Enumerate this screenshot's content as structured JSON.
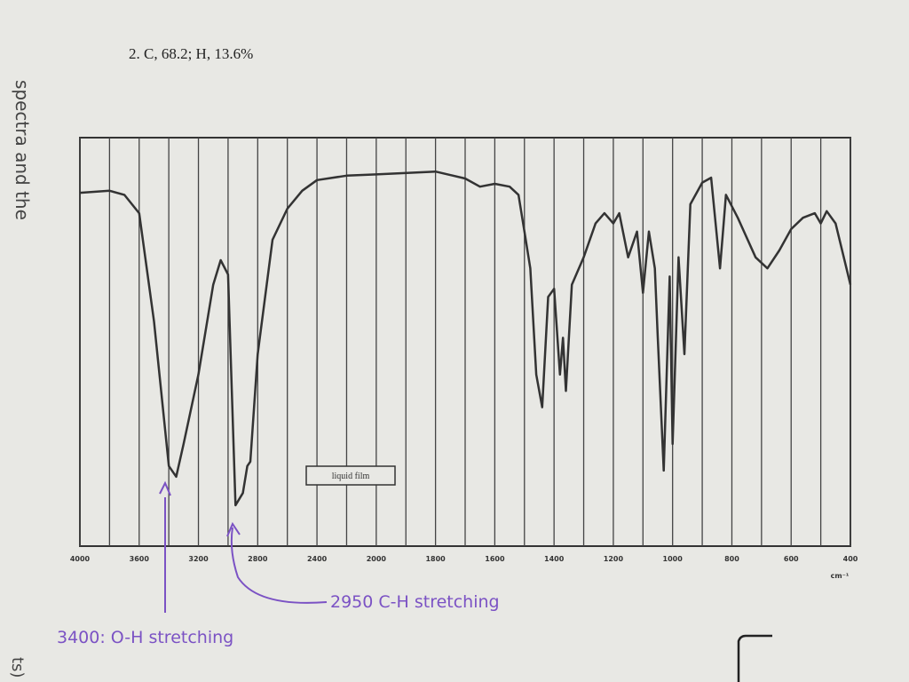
{
  "chart_data": {
    "type": "line",
    "title": "2. C, 68.2; H, 13.6%",
    "x_label": "cm⁻¹",
    "box_label": "liquid film",
    "annotations": [
      "2950 C-H stretching",
      "3400: O-H stretching"
    ],
    "margin_texts": [
      "spectra and the",
      "ts)"
    ],
    "color": "#333333",
    "annotation_color": "#7b52c4",
    "grid": true,
    "xlim": [
      4000,
      400
    ],
    "ylim": [
      0,
      100
    ],
    "xticks": [
      4000,
      3600,
      3200,
      2800,
      2400,
      2000,
      1800,
      1600,
      1400,
      1200,
      1000,
      800,
      600,
      400
    ],
    "x": [
      4000,
      3800,
      3700,
      3600,
      3500,
      3400,
      3350,
      3300,
      3200,
      3100,
      3050,
      3000,
      2950,
      2900,
      2870,
      2850,
      2800,
      2700,
      2600,
      2500,
      2400,
      2200,
      2000,
      1800,
      1700,
      1650,
      1600,
      1550,
      1520,
      1500,
      1480,
      1460,
      1440,
      1420,
      1400,
      1380,
      1370,
      1360,
      1340,
      1300,
      1260,
      1230,
      1200,
      1180,
      1150,
      1120,
      1100,
      1080,
      1060,
      1050,
      1030,
      1010,
      1000,
      980,
      960,
      940,
      900,
      870,
      840,
      820,
      780,
      720,
      680,
      640,
      600,
      560,
      520,
      500,
      480,
      450,
      400
    ],
    "values": [
      86.5,
      87,
      86,
      81.5,
      55,
      19.6,
      17,
      25,
      42,
      64,
      70,
      66.5,
      10,
      13,
      19.6,
      20.7,
      47,
      75,
      82.6,
      87,
      89.6,
      90.7,
      91,
      91.7,
      90,
      88,
      88.7,
      88,
      86,
      77,
      68,
      42,
      34,
      61,
      63,
      42,
      51,
      38,
      64,
      70.7,
      79,
      81.5,
      79,
      81.5,
      70.7,
      77,
      62,
      77,
      68,
      51,
      18.5,
      66,
      25,
      70.7,
      47,
      83.7,
      89,
      90.2,
      68,
      86,
      80.4,
      70.7,
      68,
      72.4,
      77.6,
      80.4,
      81.5,
      79,
      82,
      79,
      64
    ]
  }
}
